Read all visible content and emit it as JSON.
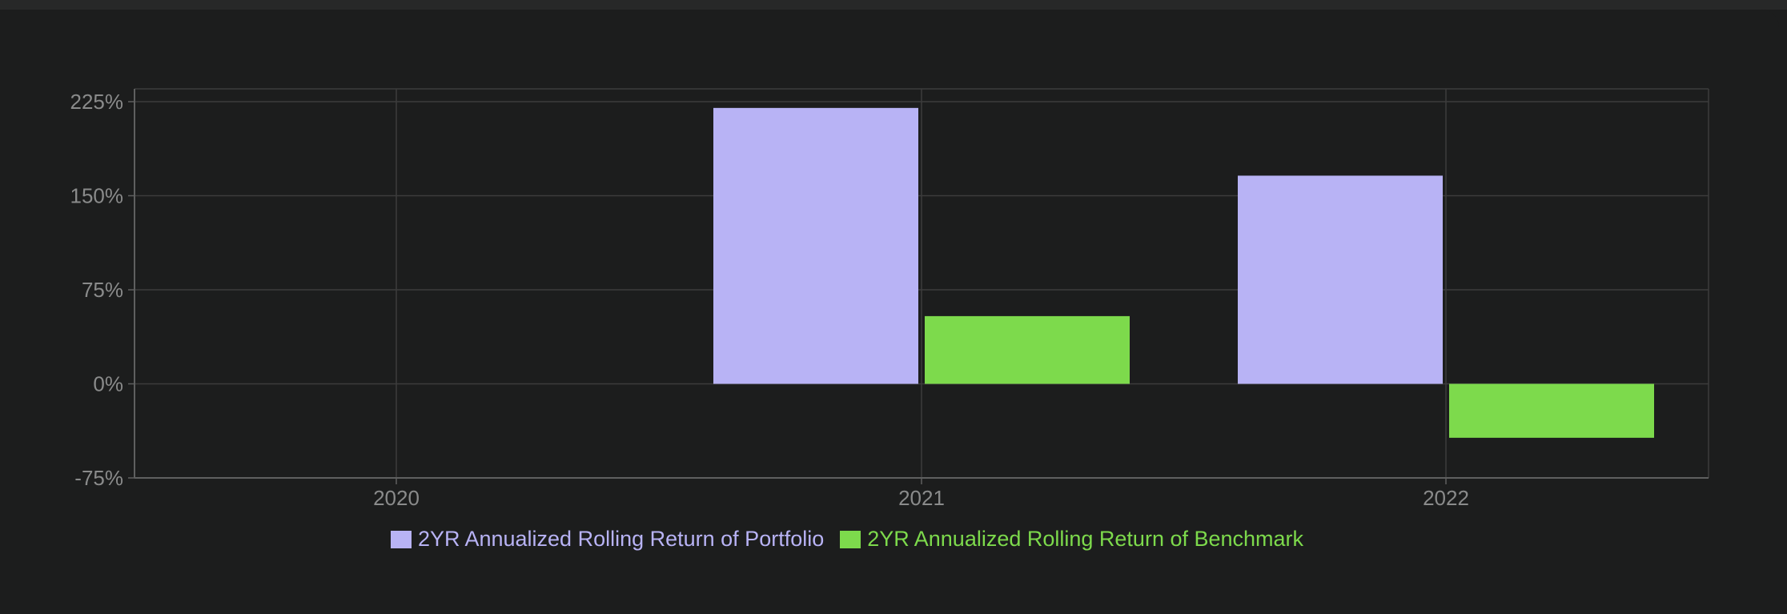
{
  "chart_data": {
    "type": "bar",
    "categories": [
      "2020",
      "2021",
      "2022"
    ],
    "series": [
      {
        "name": "2YR Annualized Rolling Return of Portfolio",
        "color": "#b8b3f5",
        "values": [
          null,
          220,
          166
        ]
      },
      {
        "name": "2YR Annualized Rolling Return of Benchmark",
        "color": "#7dda4c",
        "values": [
          null,
          54,
          -43
        ]
      }
    ],
    "ylim": [
      -75,
      225
    ],
    "yticks": [
      225,
      150,
      75,
      0,
      -75
    ],
    "ytick_labels": [
      "225%",
      "150%",
      "75%",
      "0%",
      "-75%"
    ],
    "grid": true,
    "legend_position": "bottom",
    "colors": {
      "background": "#1c1d1d",
      "grid": "#3c3d3d",
      "axis": "#5e5f5f",
      "tick_text": "#8a8b8b"
    }
  }
}
